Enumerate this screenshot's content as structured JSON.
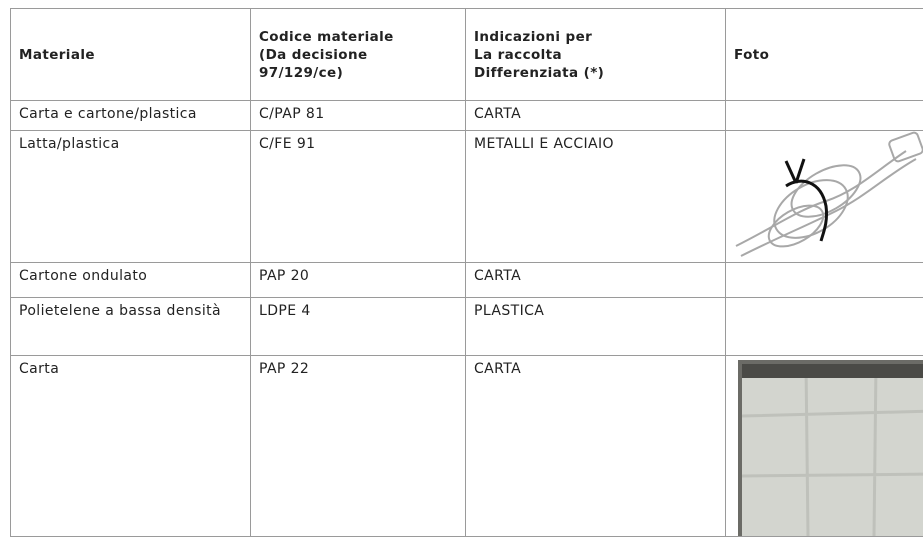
{
  "table": {
    "headers": [
      "Materiale",
      "Codice materiale\n(Da decisione\n97/129/ce)",
      "Indicazioni per\nLa raccolta\nDifferenziata (*)",
      "Foto"
    ],
    "rows": [
      [
        "Carta e cartone/plastica",
        "C/PAP 81",
        "CARTA"
      ],
      [
        "Latta/plastica",
        "C/FE 91",
        "METALLI E ACCIAIO"
      ],
      [
        "Cartone ondulato",
        "PAP 20",
        "CARTA"
      ],
      [
        "Polietelene a bassa densità",
        "LDPE 4",
        "PLASTICA"
      ],
      [
        "Carta",
        "PAP 22",
        "CARTA"
      ]
    ]
  }
}
